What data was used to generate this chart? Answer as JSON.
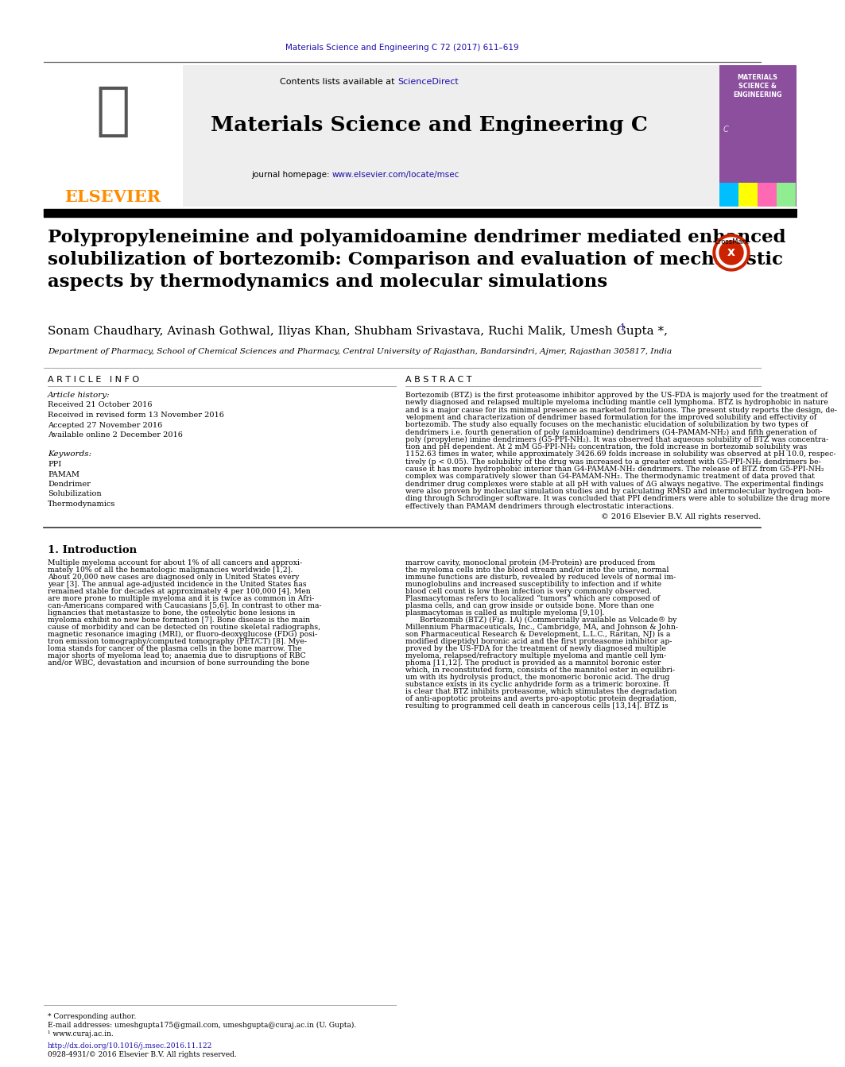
{
  "journal_citation": "Materials Science and Engineering C 72 (2017) 611–619",
  "contents_text": "Contents lists available at ",
  "sciencedirect_text": "ScienceDirect",
  "journal_name": "Materials Science and Engineering C",
  "homepage_text": "journal homepage: ",
  "homepage_url": "www.elsevier.com/locate/msec",
  "elsevier_text": "ELSEVIER",
  "title": "Polypropyleneimine and polyamidoamine dendrimer mediated enhanced\nsolubilization of bortezomib: Comparison and evaluation of mechanistic\naspects by thermodynamics and molecular simulations",
  "authors": "Sonam Chaudhary, Avinash Gothwal, Iliyas Khan, Shubham Srivastava, Ruchi Malik, Umesh Gupta",
  "affiliation": "Department of Pharmacy, School of Chemical Sciences and Pharmacy, Central University of Rajasthan, Bandarsindri, Ajmer, Rajasthan 305817, India",
  "article_info_header": "A R T I C L E   I N F O",
  "article_history_header": "Article history:",
  "received": "Received 21 October 2016",
  "revised": "Received in revised form 13 November 2016",
  "accepted": "Accepted 27 November 2016",
  "available": "Available online 2 December 2016",
  "keywords_header": "Keywords:",
  "keywords": [
    "PPI",
    "PAMAM",
    "Dendrimer",
    "Solubilization",
    "Thermodynamics"
  ],
  "abstract_header": "A B S T R A C T",
  "abstract_text": "Bortezomib (BTZ) is the first proteasome inhibitor approved by the US-FDA is majorly used for the treatment of\nnewly diagnosed and relapsed multiple myeloma including mantle cell lymphoma. BTZ is hydrophobic in nature\nand is a major cause for its minimal presence as marketed formulations. The present study reports the design, de-\nvelopment and characterization of dendrimer based formulation for the improved solubility and effectivity of\nbortezomib. The study also equally focuses on the mechanistic elucidation of solubilization by two types of\ndendrimers i.e. fourth generation of poly (amidoamine) dendrimers (G4-PAMAM-NH₂) and fifth generation of\npoly (propylene) imine dendrimers (G5-PPI-NH₂). It was observed that aqueous solubility of BTZ was concentra-\ntion and pH dependent. At 2 mM G5-PPI-NH₂ concentration, the fold increase in bortezomib solubility was\n1152.63 times in water, while approximately 3426.69 folds increase in solubility was observed at pH 10.0, respec-\ntively (p < 0.05). The solubility of the drug was increased to a greater extent with G5-PPI-NH₂ dendrimers be-\ncause it has more hydrophobic interior than G4-PAMAM-NH₂ dendrimers. The release of BTZ from G5-PPI-NH₂\ncomplex was comparatively slower than G4-PAMAM-NH₂. The thermodynamic treatment of data proved that\ndendrimer drug complexes were stable at all pH with values of ΔG always negative. The experimental findings\nwere also proven by molecular simulation studies and by calculating RMSD and intermolecular hydrogen bon-\nding through Schrodinger software. It was concluded that PPI dendrimers were able to solubilize the drug more\neffectively than PAMAM dendrimers through electrostatic interactions.",
  "copyright": "© 2016 Elsevier B.V. All rights reserved.",
  "intro_header": "1. Introduction",
  "intro_text_left": "Multiple myeloma account for about 1% of all cancers and approxi-\nmately 10% of all the hematologic malignancies worldwide [1,2].\nAbout 20,000 new cases are diagnosed only in United States every\nyear [3]. The annual age-adjusted incidence in the United States has\nremained stable for decades at approximately 4 per 100,000 [4]. Men\nare more prone to multiple myeloma and it is twice as common in Afri-\ncan-Americans compared with Caucasians [5,6]. In contrast to other ma-\nlignancies that metastasize to bone, the osteolytic bone lesions in\nmyeloma exhibit no new bone formation [7]. Bone disease is the main\ncause of morbidity and can be detected on routine skeletal radiographs,\nmagnetic resonance imaging (MRI), or fluoro-deoxyglucose (FDG) posi-\ntron emission tomography/computed tomography (PET/CT) [8]. Mye-\nloma stands for cancer of the plasma cells in the bone marrow. The\nmajor shorts of myeloma lead to; anaemia due to disruptions of RBC\nand/or WBC, devastation and incursion of bone surrounding the bone",
  "intro_text_right": "marrow cavity, monoclonal protein (M-Protein) are produced from\nthe myeloma cells into the blood stream and/or into the urine, normal\nimmune functions are disturb, revealed by reduced levels of normal im-\nmunoglobulins and increased susceptibility to infection and if white\nblood cell count is low then infection is very commonly observed.\nPlasmacytomas refers to localized “tumors” which are composed of\nplasma cells, and can grow inside or outside bone. More than one\nplasmacytomas is called as multiple myeloma [9,10].\n      Bortezomib (BTZ) (Fig. 1A) (Commercially available as Velcade® by\nMillennium Pharmaceuticals, Inc., Cambridge, MA, and Johnson & John-\nson Pharmaceutical Research & Development, L.L.C., Raritan, NJ) is a\nmodified dipeptidyl boronic acid and the first proteasome inhibitor ap-\nproved by the US-FDA for the treatment of newly diagnosed multiple\nmyeloma, relapsed/refractory multiple myeloma and mantle cell lym-\nphoma [11,12]. The product is provided as a mannitol boronic ester\nwhich, in reconstituted form, consists of the mannitol ester in equilibri-\num with its hydrolysis product, the monomeric boronic acid. The drug\nsubstance exists in its cyclic anhydride form as a trimeric boroxine. It\nis clear that BTZ inhibits proteasome, which stimulates the degradation\nof anti-apoptotic proteins and averts pro-apoptotic protein degradation,\nresulting to programmed cell death in cancerous cells [13,14]. BTZ is",
  "footnote_star": "* Corresponding author.",
  "footnote_email": "E-mail addresses: umeshgupta175@gmail.com, umeshgupta@curaj.ac.in (U. Gupta).",
  "footnote_1": "¹ www.curaj.ac.in.",
  "doi": "http://dx.doi.org/10.1016/j.msec.2016.11.122",
  "issn": "0928-4931/© 2016 Elsevier B.V. All rights reserved.",
  "elsevier_color": "#FF8C00",
  "link_color": "#1a0dab",
  "bg_gray": "#eeeeee",
  "cover_purple": "#8B4F9E",
  "cover_strip_colors": [
    "#00BFFF",
    "#FFFF00",
    "#FF69B4",
    "#90EE90"
  ]
}
